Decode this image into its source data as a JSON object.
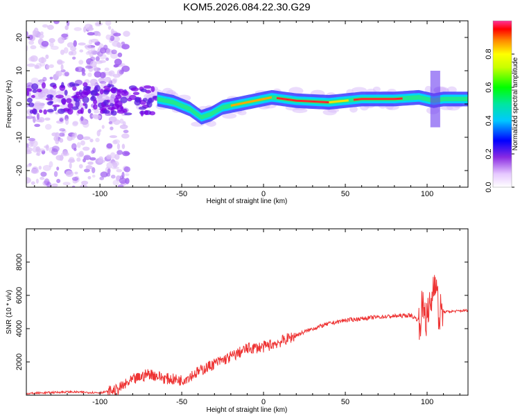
{
  "title": "KOM5.2026.084.22.30.G29",
  "spectrogram": {
    "type": "heatmap",
    "xlabel": "Height of straight line (km)",
    "ylabel": "Frequency (Hz)",
    "xlim": [
      -145,
      125
    ],
    "ylim": [
      -25,
      25
    ],
    "xticks": [
      -100,
      -50,
      0,
      50,
      100
    ],
    "yticks": [
      20,
      10,
      0,
      -10,
      -20
    ],
    "ridge": [
      [
        -65,
        1.5
      ],
      [
        -55,
        0.5
      ],
      [
        -45,
        -1.5
      ],
      [
        -38,
        -4
      ],
      [
        -32,
        -3
      ],
      [
        -25,
        -1
      ],
      [
        -15,
        0
      ],
      [
        -5,
        1
      ],
      [
        5,
        2
      ],
      [
        20,
        1
      ],
      [
        40,
        0.5
      ],
      [
        60,
        1.5
      ],
      [
        80,
        1.5
      ],
      [
        95,
        2
      ],
      [
        104,
        1
      ],
      [
        110,
        1.5
      ],
      [
        125,
        1.5
      ]
    ],
    "colorbar": {
      "label": "Normalized spectral amplitude",
      "ticks": [
        "0.0",
        "0.2",
        "0.4",
        "0.6",
        "0.8"
      ],
      "range": [
        0,
        1
      ]
    }
  },
  "chart_data": {
    "type": "line",
    "xlabel": "Height of straight line (km)",
    "ylabel": "SNR (10 * v/v)",
    "xlim": [
      -145,
      125
    ],
    "ylim": [
      0,
      10000
    ],
    "xticks": [
      -100,
      -50,
      0,
      50,
      100
    ],
    "yticks": [
      2000,
      4000,
      6000,
      8000
    ],
    "x": [
      -145,
      -120,
      -100,
      -90,
      -80,
      -70,
      -60,
      -50,
      -40,
      -30,
      -20,
      -10,
      0,
      10,
      20,
      30,
      40,
      50,
      60,
      70,
      80,
      90,
      95,
      98,
      100,
      103,
      105,
      107,
      110,
      125
    ],
    "y": [
      100,
      200,
      150,
      300,
      900,
      1300,
      1000,
      900,
      1400,
      1900,
      2300,
      2800,
      2900,
      3200,
      3600,
      4000,
      4300,
      4500,
      4600,
      4700,
      4750,
      4800,
      4500,
      5400,
      4400,
      5900,
      7500,
      4800,
      5000,
      5100
    ],
    "color": "#ee3333"
  }
}
